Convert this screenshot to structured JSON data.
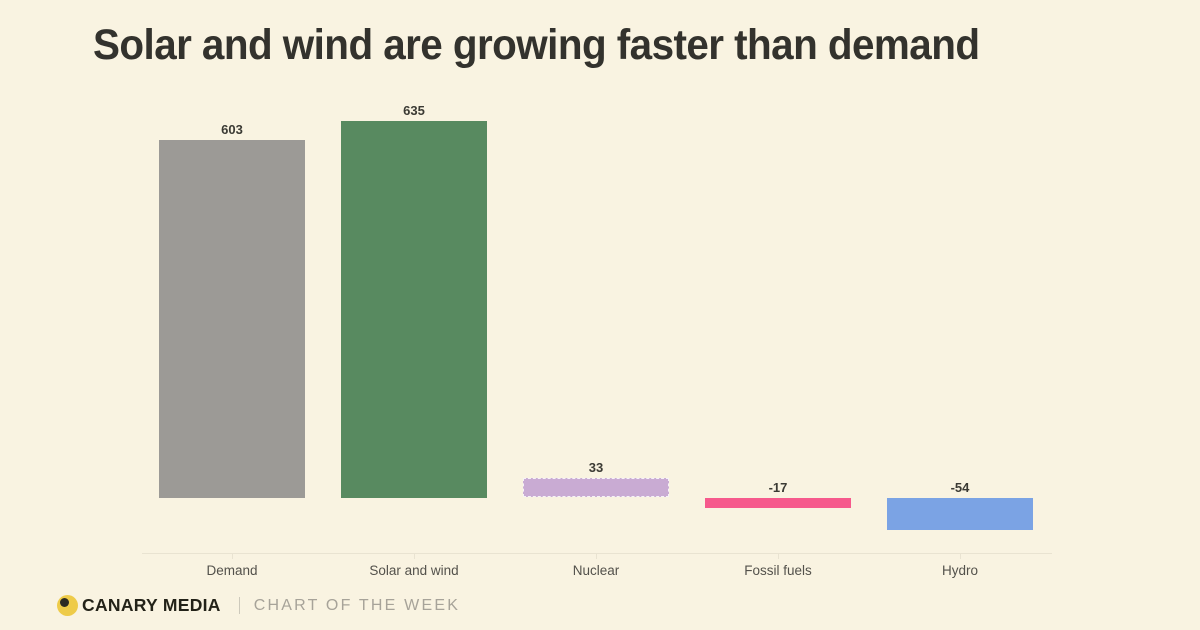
{
  "page": {
    "background_color": "#f9f3e1"
  },
  "header": {
    "title": "Solar and wind are growing faster than demand",
    "title_color": "#33322d"
  },
  "chart_data": {
    "type": "bar",
    "title": "Solar and wind are growing faster than demand",
    "categories": [
      "Demand",
      "Solar and wind",
      "Nuclear",
      "Fossil fuels",
      "Hydro"
    ],
    "values": [
      603,
      635,
      33,
      -17,
      -54
    ],
    "value_labels": [
      "603",
      "635",
      "33",
      "-17",
      "-54"
    ],
    "bar_colors": [
      "#9c9a96",
      "#588a60",
      "#c9abd3",
      "#f6598c",
      "#7ba3e4"
    ],
    "bar_borders": [
      "none",
      "none",
      "1px dashed rgba(255,255,255,0.85)",
      "none",
      "none"
    ],
    "xlabel": "",
    "ylabel": "",
    "baseline": 0,
    "ylim": [
      -54,
      635
    ],
    "gridlines": false,
    "y_axis_visible": false,
    "value_labels_shown": true,
    "legend": "none",
    "value_label_color": "#3b3a34",
    "category_label_color": "#53514b",
    "axis_line_color": "#e9e3d1"
  },
  "footer": {
    "brand": "CANARY MEDIA",
    "series_label": "CHART OF THE WEEK",
    "logo": {
      "icon": "canary-logo-icon",
      "body_color": "#eecb49",
      "pupil_color": "#2b2a23"
    }
  }
}
